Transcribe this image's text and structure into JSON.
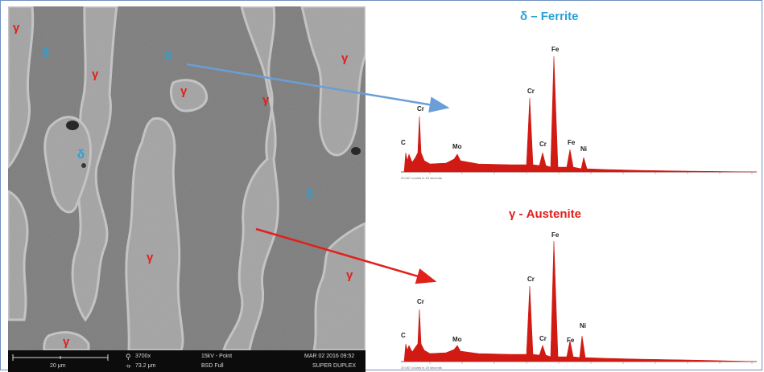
{
  "micrograph": {
    "labels_gamma": [
      "γ",
      "γ",
      "γ",
      "γ",
      "γ",
      "γ",
      "γ"
    ],
    "labels_delta": [
      "δ",
      "δ",
      "δ",
      "δ"
    ],
    "scale_bar": "20 μm",
    "magnification": "3700x",
    "field_width": "73.2 μm",
    "voltage_mode": "15kV - Point",
    "detector": "BSD Full",
    "date": "MAR 02 2016  09:52",
    "sample": "SUPER DUPLEX"
  },
  "ferrite": {
    "title": "δ – Ferrite",
    "peaks": [
      "C",
      "Cr",
      "Mo",
      "Cr",
      "Fe",
      "Cr",
      "Fe",
      "Ni"
    ],
    "footer": "20,067 counts in 20 seconds"
  },
  "austenite": {
    "title": "γ - Austenite",
    "peaks": [
      "C",
      "Cr",
      "Mo",
      "Cr",
      "Fe",
      "Cr",
      "Fe",
      "Ni"
    ],
    "footer": "20,067 counts in 20 seconds"
  },
  "colors": {
    "gamma": "#e0201c",
    "delta": "#2aa0d8",
    "spectrum": "#d11a14",
    "arrow_ferrite": "#6a9ed6",
    "arrow_austenite": "#e0201c"
  }
}
